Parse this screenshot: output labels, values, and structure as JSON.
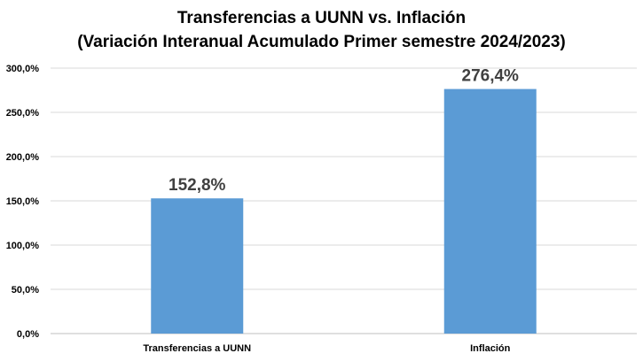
{
  "chart_data": {
    "type": "bar",
    "title": "Transferencias a UUNN  vs. Inflación",
    "subtitle": "(Variación Interanual Acumulado Primer semestre 2024/2023)",
    "categories": [
      "Transferencias a UUNN",
      "Inflación"
    ],
    "values": [
      152.8,
      276.4
    ],
    "data_labels": [
      "152,8%",
      "276,4%"
    ],
    "ylim": [
      0,
      300
    ],
    "yticks": [
      0,
      50,
      100,
      150,
      200,
      250,
      300
    ],
    "ytick_labels": [
      "0,0%",
      "50,0%",
      "100,0%",
      "150,0%",
      "200,0%",
      "250,0%",
      "300,0%"
    ],
    "xlabel": "",
    "ylabel": "",
    "grid": true,
    "bar_color": "#5B9BD5",
    "grid_color": "#D9D9D9"
  }
}
